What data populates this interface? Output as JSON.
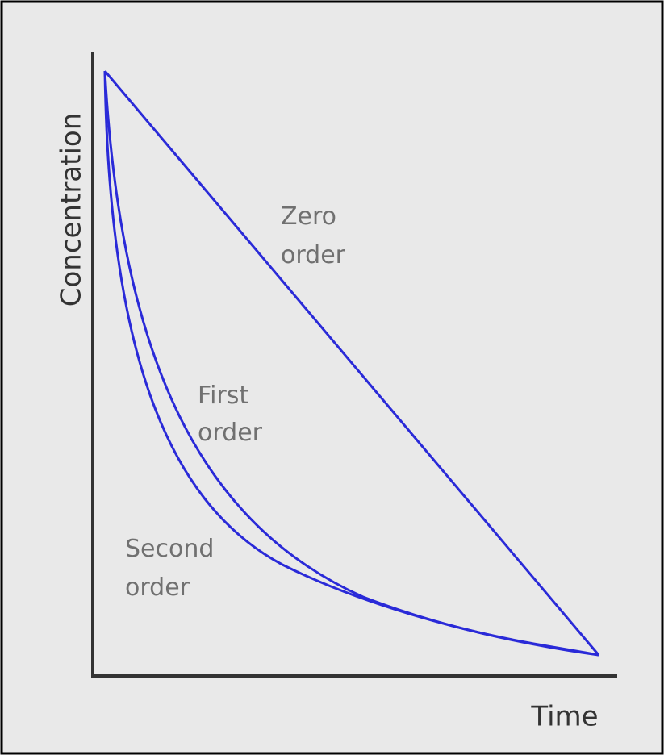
{
  "axes": {
    "x_label": "Time",
    "y_label": "Concentration"
  },
  "curves": [
    {
      "lines": [
        "Zero",
        "order"
      ]
    },
    {
      "lines": [
        "First",
        "order"
      ]
    },
    {
      "lines": [
        "Second",
        "order"
      ]
    }
  ]
}
